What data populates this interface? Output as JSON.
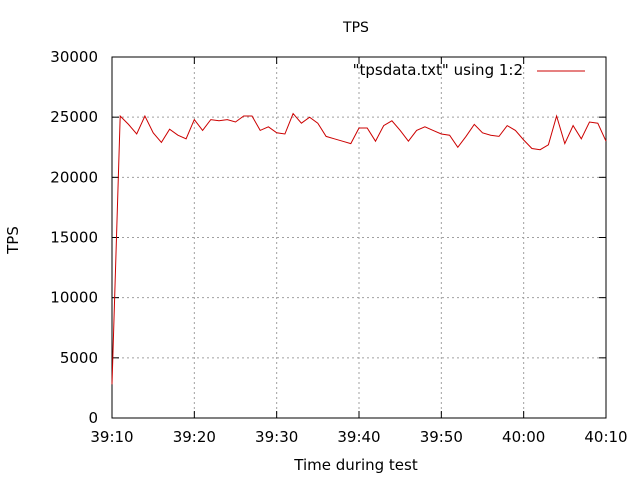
{
  "chart_data": {
    "type": "line",
    "title": "TPS",
    "xlabel": "Time during test",
    "ylabel": "TPS",
    "xlim": [
      "39:10",
      "40:10"
    ],
    "ylim": [
      0,
      30000
    ],
    "x_ticks": [
      "39:10",
      "39:20",
      "39:30",
      "39:40",
      "39:50",
      "40:00",
      "40:10"
    ],
    "y_ticks": [
      0,
      5000,
      10000,
      15000,
      20000,
      25000,
      30000
    ],
    "grid": true,
    "legend_position": "top-right",
    "series": [
      {
        "name": "\"tpsdata.txt\" using 1:2",
        "color": "#cc0000",
        "x": [
          "39:10",
          "39:11",
          "39:12",
          "39:13",
          "39:14",
          "39:15",
          "39:16",
          "39:17",
          "39:18",
          "39:19",
          "39:20",
          "39:21",
          "39:22",
          "39:23",
          "39:24",
          "39:25",
          "39:26",
          "39:27",
          "39:28",
          "39:29",
          "39:30",
          "39:31",
          "39:32",
          "39:33",
          "39:34",
          "39:35",
          "39:36",
          "39:37",
          "39:38",
          "39:39",
          "39:40",
          "39:41",
          "39:42",
          "39:43",
          "39:44",
          "39:45",
          "39:46",
          "39:47",
          "39:48",
          "39:49",
          "39:50",
          "39:51",
          "39:52",
          "39:53",
          "39:54",
          "39:55",
          "39:56",
          "39:57",
          "39:58",
          "39:59",
          "40:00",
          "40:01",
          "40:02",
          "40:03",
          "40:04",
          "40:05",
          "40:06",
          "40:07",
          "40:08",
          "40:09",
          "40:10"
        ],
        "values": [
          2800,
          25100,
          24400,
          23600,
          25100,
          23700,
          22900,
          24000,
          23500,
          23200,
          24800,
          23900,
          24800,
          24700,
          24800,
          24600,
          25100,
          25100,
          23900,
          24200,
          23700,
          23600,
          25300,
          24500,
          25000,
          24500,
          23400,
          23200,
          23000,
          22800,
          24100,
          24100,
          23000,
          24300,
          24700,
          23900,
          23000,
          23900,
          24200,
          23900,
          23600,
          23500,
          22500,
          23400,
          24400,
          23700,
          23500,
          23400,
          24300,
          23900,
          23100,
          22400,
          22300,
          22700,
          25100,
          22800,
          24300,
          23200,
          24600,
          24500,
          23000
        ]
      }
    ]
  }
}
